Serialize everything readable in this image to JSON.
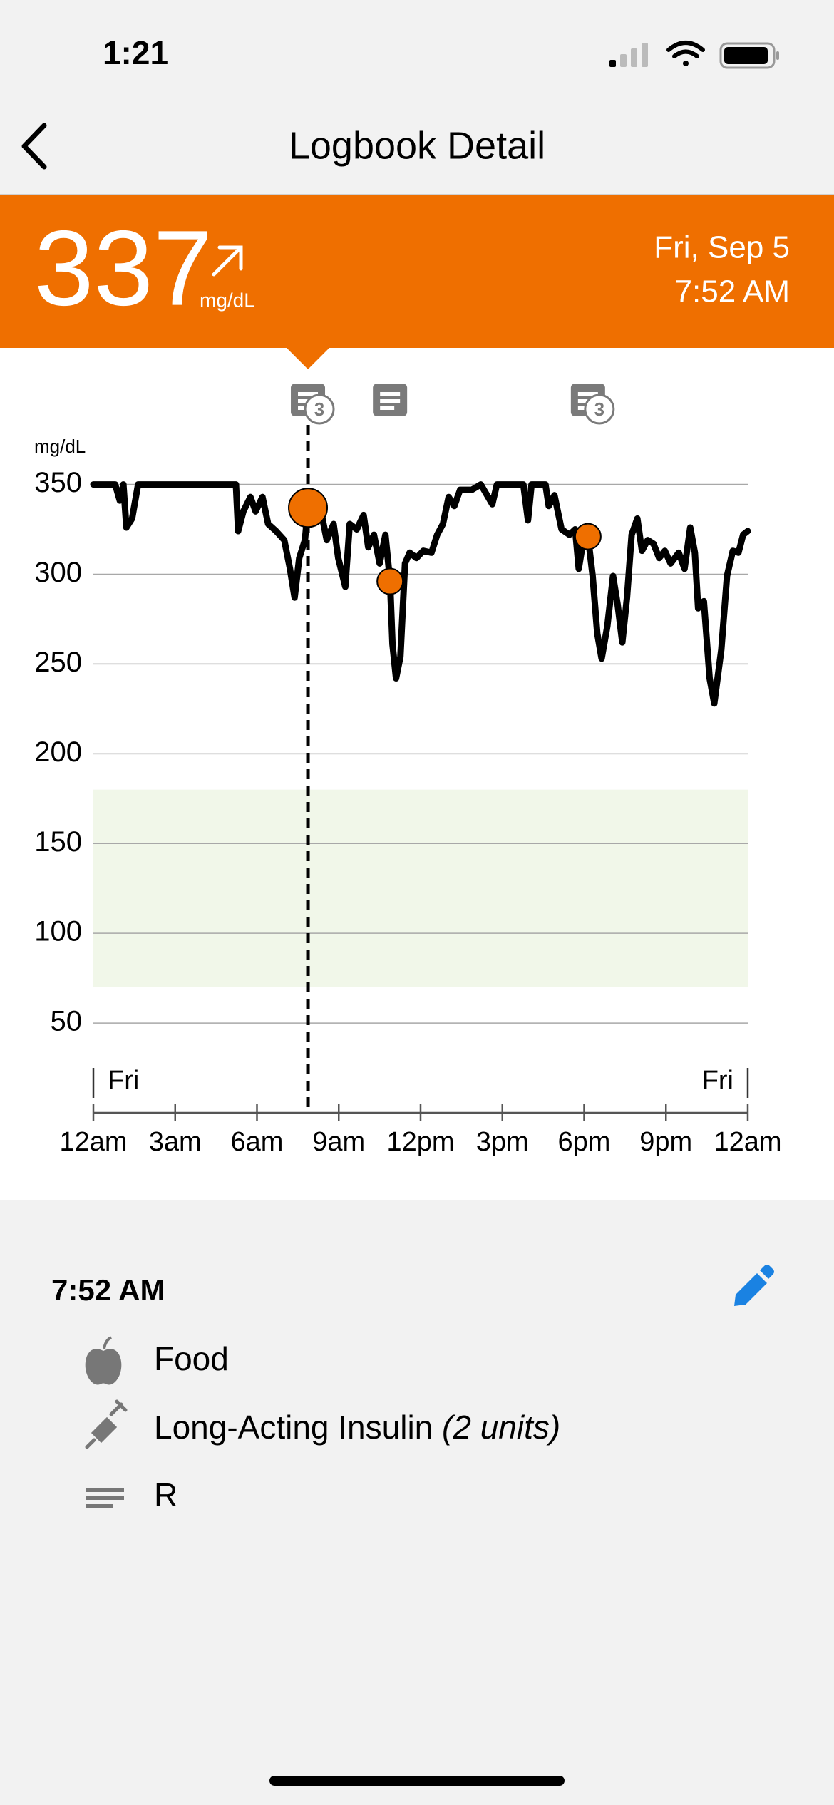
{
  "status_bar": {
    "time": "1:21"
  },
  "header": {
    "title": "Logbook Detail"
  },
  "reading": {
    "value": 337,
    "unit": "mg/dL",
    "date": "Fri, Sep 5",
    "time": "7:52 AM"
  },
  "chart_data": {
    "type": "line",
    "y_label": "mg/dL",
    "xlim": [
      0,
      24
    ],
    "xticks": [
      {
        "value": 0,
        "label": "12am"
      },
      {
        "value": 3,
        "label": "3am"
      },
      {
        "value": 6,
        "label": "6am"
      },
      {
        "value": 9,
        "label": "9am"
      },
      {
        "value": 12,
        "label": "12pm"
      },
      {
        "value": 15,
        "label": "3pm"
      },
      {
        "value": 18,
        "label": "6pm"
      },
      {
        "value": 21,
        "label": "9pm"
      },
      {
        "value": 24,
        "label": "12am"
      }
    ],
    "ylim": [
      0,
      380
    ],
    "yticks": [
      50,
      100,
      150,
      200,
      250,
      300,
      350
    ],
    "grid": true,
    "day_labels": [
      "Fri",
      "Fri"
    ],
    "target_range": [
      70,
      180
    ],
    "target_color": "#f1f7e9",
    "cursor_x": 7.87,
    "color": "#000000",
    "x": [
      0,
      0.8,
      0.97,
      1.1,
      1.21,
      1.42,
      1.64,
      5.23,
      5.31,
      5.5,
      5.76,
      5.95,
      6.2,
      6.41,
      6.7,
      7.0,
      7.21,
      7.38,
      7.55,
      7.76,
      7.87,
      8.05,
      8.31,
      8.56,
      8.81,
      8.98,
      9.24,
      9.4,
      9.66,
      9.91,
      10.08,
      10.29,
      10.5,
      10.71,
      10.88,
      10.97,
      11.1,
      11.26,
      11.43,
      11.6,
      11.85,
      12.1,
      12.4,
      12.61,
      12.82,
      13.03,
      13.24,
      13.45,
      13.88,
      14.21,
      14.63,
      14.8,
      15.77,
      15.94,
      16.07,
      16.58,
      16.7,
      16.91,
      17.17,
      17.46,
      17.67,
      17.8,
      17.97,
      18.14,
      18.31,
      18.48,
      18.64,
      18.85,
      19.06,
      19.23,
      19.4,
      19.57,
      19.74,
      19.95,
      20.12,
      20.33,
      20.54,
      20.75,
      20.96,
      21.17,
      21.47,
      21.68,
      21.89,
      22.06,
      22.18,
      22.39,
      22.6,
      22.77,
      23.03,
      23.24,
      23.45,
      23.66,
      23.83,
      24
    ],
    "values": [
      350,
      350,
      341,
      350,
      326,
      331,
      350,
      350,
      324,
      335,
      343,
      335,
      343,
      328,
      324,
      319,
      303,
      287,
      309,
      319,
      337,
      345,
      338,
      319,
      328,
      309,
      293,
      328,
      325,
      333,
      315,
      322,
      306,
      322,
      296,
      261,
      242,
      254,
      306,
      312,
      309,
      313,
      312,
      322,
      328,
      343,
      338,
      347,
      347,
      350,
      339,
      350,
      350,
      330,
      350,
      350,
      338,
      344,
      325,
      322,
      325,
      303,
      319,
      321,
      299,
      267,
      253,
      271,
      299,
      283,
      262,
      287,
      322,
      331,
      313,
      319,
      317,
      309,
      313,
      306,
      312,
      303,
      326,
      312,
      281,
      285,
      242,
      228,
      258,
      299,
      313,
      312,
      322,
      324
    ],
    "markers": {
      "color": "#ef6f00",
      "x": [
        7.87,
        10.88,
        18.14
      ],
      "values": [
        337,
        296,
        321
      ],
      "badges": [
        "3",
        null,
        "3"
      ]
    }
  },
  "log_entry": {
    "time": "7:52 AM",
    "items": [
      {
        "label": "Food"
      },
      {
        "label": "Long-Acting Insulin",
        "detail": "(2 units)"
      },
      {
        "label": "R"
      }
    ]
  }
}
